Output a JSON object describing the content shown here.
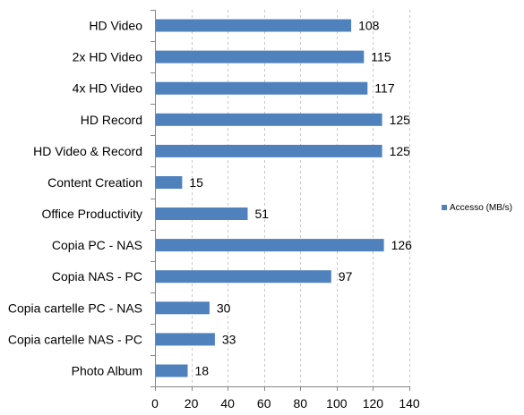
{
  "chart_data": {
    "type": "bar",
    "orientation": "horizontal",
    "categories": [
      "HD Video",
      "2x HD Video",
      "4x HD Video",
      "HD Record",
      "HD Video & Record",
      "Content Creation",
      "Office Productivity",
      "Copia PC - NAS",
      "Copia NAS - PC",
      "Copia cartelle PC - NAS",
      "Copia cartelle NAS - PC",
      "Photo Album"
    ],
    "series": [
      {
        "name": "Accesso (MB/s)",
        "values": [
          108,
          115,
          117,
          125,
          125,
          15,
          51,
          126,
          97,
          30,
          33,
          18
        ],
        "color": "#4F81BD"
      }
    ],
    "xlim": [
      0,
      140
    ],
    "xticks": [
      0,
      20,
      40,
      60,
      80,
      100,
      120,
      140
    ],
    "grid": "vertical-dashed",
    "legend_position": "right",
    "data_labels": true,
    "title": "",
    "xlabel": "",
    "ylabel": ""
  }
}
